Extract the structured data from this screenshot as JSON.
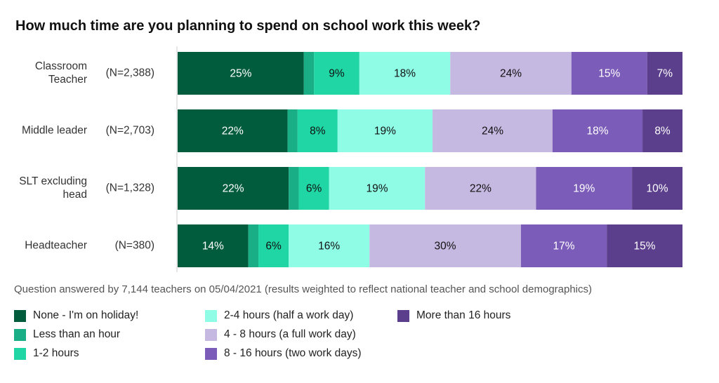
{
  "chart_data": {
    "type": "bar",
    "orientation": "horizontal",
    "stacked": true,
    "title": "How much time are you planning to spend on school work this week?",
    "note": "Question answered by 7,144 teachers on 05/04/2021 (results weighted to reflect national teacher and school demographics)",
    "categories": [
      {
        "label": "Classroom Teacher",
        "label_lines": [
          "Classroom",
          "Teacher"
        ],
        "n": "(N=2,388)"
      },
      {
        "label": "Middle leader",
        "label_lines": [
          "Middle leader"
        ],
        "n": "(N=2,703)"
      },
      {
        "label": "SLT excluding head",
        "label_lines": [
          "SLT excluding",
          "head"
        ],
        "n": "(N=1,328)"
      },
      {
        "label": "Headteacher",
        "label_lines": [
          "Headteacher"
        ],
        "n": "(N=380)"
      }
    ],
    "series": [
      {
        "name": "None - I'm on holiday!",
        "color": "#005c3c",
        "text_color": "#ffffff",
        "values": [
          25,
          22,
          22,
          14
        ]
      },
      {
        "name": "Less than an hour",
        "color": "#1aae87",
        "text_color": "#ffffff",
        "values": [
          2,
          2,
          2,
          2
        ]
      },
      {
        "name": "1-2 hours",
        "color": "#1fd6a4",
        "text_color": "#111111",
        "values": [
          9,
          8,
          6,
          6
        ]
      },
      {
        "name": "2-4 hours (half a work day)",
        "color": "#8ffde6",
        "text_color": "#111111",
        "values": [
          18,
          19,
          19,
          16
        ]
      },
      {
        "name": "4 - 8 hours (a full work day)",
        "color": "#c5b8e1",
        "text_color": "#111111",
        "values": [
          24,
          24,
          22,
          30
        ]
      },
      {
        "name": "8 - 16 hours (two work days)",
        "color": "#7c5cb9",
        "text_color": "#ffffff",
        "values": [
          15,
          18,
          19,
          17
        ]
      },
      {
        "name": "More than 16 hours",
        "color": "#5c3f8c",
        "text_color": "#ffffff",
        "values": [
          7,
          8,
          10,
          15
        ]
      }
    ],
    "data_labels": [
      [
        "25%",
        "",
        "9%",
        "18%",
        "24%",
        "15%",
        "7%"
      ],
      [
        "22%",
        "",
        "8%",
        "19%",
        "24%",
        "18%",
        "8%"
      ],
      [
        "22%",
        "",
        "6%",
        "19%",
        "22%",
        "19%",
        "10%"
      ],
      [
        "14%",
        "",
        "6%",
        "16%",
        "30%",
        "17%",
        "15%"
      ]
    ],
    "xlim": [
      0,
      100
    ],
    "legend_position": "bottom"
  }
}
